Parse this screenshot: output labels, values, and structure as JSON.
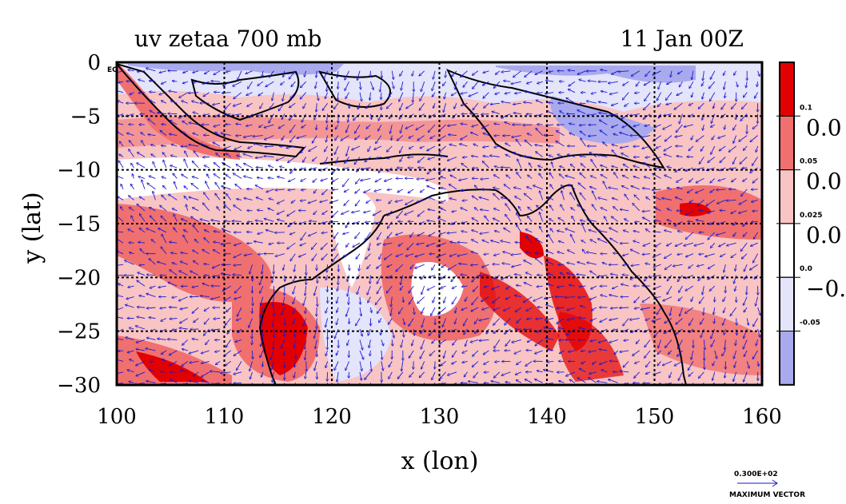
{
  "chart_data": {
    "type": "heatmap",
    "title_left": "uv zetaa 700 mb",
    "title_right": "11 Jan 00Z",
    "xlabel": "x (lon)",
    "ylabel": "y (lat)",
    "xlim": [
      100,
      160
    ],
    "ylim": [
      -30,
      0
    ],
    "x_ticks": [
      "100",
      "110",
      "120",
      "130",
      "140",
      "150",
      "160"
    ],
    "y_ticks": [
      "0",
      "−5",
      "−10",
      "−15",
      "−20",
      "−25",
      "−30"
    ],
    "equator_label": "EQ",
    "grid": true,
    "colorbar": {
      "colors": [
        "#e30000",
        "#f07070",
        "#f8c4c4",
        "#ffffff",
        "#e4e4fb",
        "#a9a9ee"
      ],
      "small_labels": [
        "0.1",
        "0.05",
        "0.025",
        "0.0",
        "-0.05"
      ],
      "large_labels": [
        "0.0",
        "0.0",
        "0.0",
        "−0."
      ]
    },
    "vector_key": {
      "value": "0.300E+02",
      "label": "MAXIMUM VECTOR"
    },
    "field_description": "700 mb absolute vorticity shaded with wind vectors over Maritime Continent and Australia"
  },
  "colors": {
    "strong_pos": "#e30000",
    "mid_pos": "#f07070",
    "weak_pos": "#f8c4c4",
    "weak_neg": "#e4e4fb",
    "strong_neg": "#a9a9ee",
    "vector": "#1a1ad0",
    "coast": "#000000"
  }
}
